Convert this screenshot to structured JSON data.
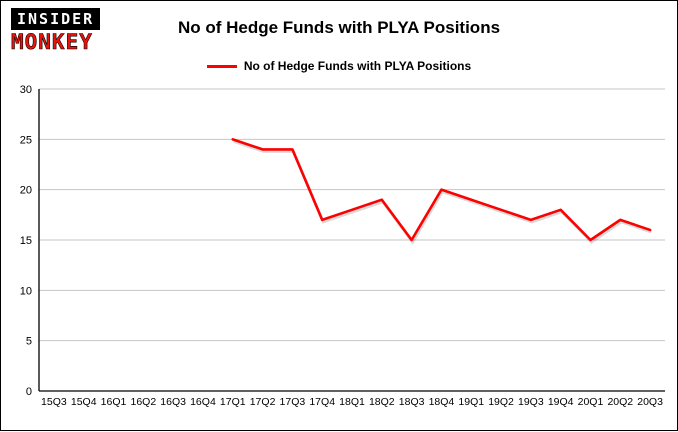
{
  "logo": {
    "line1": "INSIDER",
    "line2": "MONKEY"
  },
  "title": "No of Hedge Funds with PLYA Positions",
  "legend": {
    "label": "No of Hedge Funds with PLYA Positions",
    "color": "#ff0000"
  },
  "chart_data": {
    "type": "line",
    "title": "No of Hedge Funds with PLYA Positions",
    "categories": [
      "15Q3",
      "15Q4",
      "16Q1",
      "16Q2",
      "16Q3",
      "16Q4",
      "17Q1",
      "17Q2",
      "17Q3",
      "17Q4",
      "18Q1",
      "18Q2",
      "18Q3",
      "18Q4",
      "19Q1",
      "19Q2",
      "19Q3",
      "19Q4",
      "20Q1",
      "20Q2",
      "20Q3"
    ],
    "series": [
      {
        "name": "No of Hedge Funds with PLYA Positions",
        "color": "#ff0000",
        "values": [
          null,
          null,
          null,
          null,
          null,
          null,
          25,
          24,
          24,
          17,
          18,
          19,
          15,
          20,
          19,
          18,
          17,
          18,
          15,
          17,
          16
        ]
      }
    ],
    "xlabel": "",
    "ylabel": "",
    "ylim": [
      0,
      30
    ],
    "yticks": [
      0,
      5,
      10,
      15,
      20,
      25,
      30
    ],
    "grid": true,
    "grid_color": "#c6c6c6",
    "axis_color": "#000000",
    "legend_position": "top"
  }
}
